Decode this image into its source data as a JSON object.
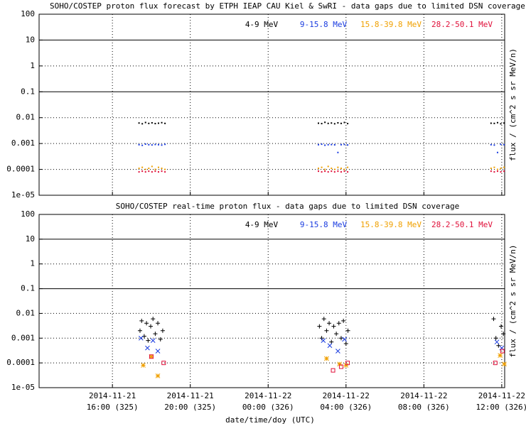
{
  "chart_data": [
    {
      "type": "scatter",
      "title": "SOHO/COSTEP proton flux forecast by ETPH IEAP CAU Kiel & SwRI  - data gaps due to limited DSN coverage",
      "ylabel": "flux / (cm^2 s sr MeV/n)",
      "ylog": true,
      "grid": true,
      "hlines": [
        10,
        0.1
      ],
      "legend": "top-right",
      "xlim": [
        "2014-11-21T12:14",
        "2014-11-22T12:09"
      ],
      "xticks": [
        "2014-11-21T16:00",
        "2014-11-21T20:00",
        "2014-11-22T00:00",
        "2014-11-22T04:00",
        "2014-11-22T08:00",
        "2014-11-22T12:00"
      ],
      "ylim": [
        1e-05,
        100
      ],
      "yticks": [
        100,
        10,
        1,
        0.1,
        0.01,
        0.001,
        0.0001,
        {
          "value": 1e-05,
          "label": "1e-05"
        }
      ],
      "x": [
        "2014-11-21T17:22",
        "2014-11-21T17:32",
        "2014-11-21T17:42",
        "2014-11-21T17:52",
        "2014-11-21T18:02",
        "2014-11-21T18:12",
        "2014-11-21T18:22",
        "2014-11-21T18:32",
        "2014-11-21T18:42",
        "2014-11-22T02:35",
        "2014-11-22T02:45",
        "2014-11-22T02:55",
        "2014-11-22T03:05",
        "2014-11-22T03:15",
        "2014-11-22T03:25",
        "2014-11-22T03:35",
        "2014-11-22T03:45",
        "2014-11-22T03:55",
        "2014-11-22T04:05",
        "2014-11-22T11:27",
        "2014-11-22T11:37",
        "2014-11-22T11:47",
        "2014-11-22T11:57",
        "2014-11-22T12:07"
      ],
      "series": [
        {
          "name": "4-9 MeV",
          "color": "#000000",
          "marker": "dot",
          "values": [
            0.0062,
            0.0058,
            0.0065,
            0.006,
            0.0063,
            0.0059,
            0.0061,
            0.0064,
            0.006,
            0.0061,
            0.0059,
            0.0066,
            0.006,
            0.0062,
            0.0058,
            0.0063,
            0.006,
            0.0065,
            0.0059,
            0.0061,
            0.006,
            0.0064,
            0.0058,
            0.0062
          ]
        },
        {
          "name": "9-15.8 MeV",
          "color": "#1a3ce0",
          "marker": "dot",
          "values": [
            0.0009,
            0.00085,
            0.00095,
            0.0009,
            0.00088,
            0.00092,
            0.0009,
            0.00087,
            0.00093,
            0.0009,
            0.00094,
            0.00086,
            0.0009,
            0.00091,
            0.00089,
            0.00045,
            0.0009,
            0.00092,
            0.00088,
            0.0009,
            0.00087,
            0.00045,
            0.00093,
            0.0009
          ]
        },
        {
          "name": "15.8-39.8 MeV",
          "color": "#f0a000",
          "marker": "dot",
          "values": [
            0.00011,
            0.00012,
            0.0001,
            0.00011,
            0.00013,
            0.0001,
            0.00012,
            0.00011,
            0.0001,
            0.00011,
            0.00012,
            0.0001,
            0.00013,
            0.00011,
            0.0001,
            0.00012,
            0.00011,
            0.0001,
            0.00012,
            0.00011,
            0.00012,
            0.0001,
            0.00011,
            0.00012
          ]
        },
        {
          "name": "28.2-50.1 MeV",
          "color": "#e0103a",
          "marker": "dot",
          "values": [
            8e-05,
            8.5e-05,
            8e-05,
            8.5e-05,
            8e-05,
            8.5e-05,
            8e-05,
            8.5e-05,
            8e-05,
            8.5e-05,
            8e-05,
            8.5e-05,
            8e-05,
            8.5e-05,
            8e-05,
            8.5e-05,
            8e-05,
            8.5e-05,
            8e-05,
            8.5e-05,
            8e-05,
            8.5e-05,
            8e-05,
            8.5e-05
          ]
        }
      ]
    },
    {
      "type": "scatter",
      "title": "SOHO/COSTEP real-time proton flux - data gaps due to limited DSN coverage",
      "ylabel": "flux / (cm^2 s sr MeV/n)",
      "xlabel": "date/time/doy (UTC)",
      "ylog": true,
      "grid": true,
      "hlines": [
        10,
        0.1
      ],
      "legend": "top-right",
      "xlim": [
        "2014-11-21T12:14",
        "2014-11-22T12:09"
      ],
      "xticks": [
        {
          "value": "2014-11-21T16:00",
          "label": [
            "2014-11-21",
            "16:00 (325)"
          ]
        },
        {
          "value": "2014-11-21T20:00",
          "label": [
            "2014-11-21",
            "20:00 (325)"
          ]
        },
        {
          "value": "2014-11-22T00:00",
          "label": [
            "2014-11-22",
            "00:00 (326)"
          ]
        },
        {
          "value": "2014-11-22T04:00",
          "label": [
            "2014-11-22",
            "04:00 (326)"
          ]
        },
        {
          "value": "2014-11-22T08:00",
          "label": [
            "2014-11-22",
            "08:00 (326)"
          ]
        },
        {
          "value": "2014-11-22T12:00",
          "label": [
            "2014-11-22",
            "12:00 (326)"
          ]
        }
      ],
      "ylim": [
        1e-05,
        100
      ],
      "yticks": [
        100,
        10,
        1,
        0.1,
        0.01,
        0.001,
        0.0001,
        {
          "value": 1e-05,
          "label": "1e-05"
        }
      ],
      "series": [
        {
          "name": "4-9 MeV",
          "color": "#000000",
          "marker": "plus",
          "x": [
            "2014-11-21T17:25",
            "2014-11-21T17:30",
            "2014-11-21T17:38",
            "2014-11-21T17:45",
            "2014-11-21T17:50",
            "2014-11-21T17:58",
            "2014-11-21T18:05",
            "2014-11-21T18:12",
            "2014-11-21T18:20",
            "2014-11-21T18:28",
            "2014-11-21T18:35",
            "2014-11-22T02:38",
            "2014-11-22T02:45",
            "2014-11-22T02:52",
            "2014-11-22T03:00",
            "2014-11-22T03:08",
            "2014-11-22T03:15",
            "2014-11-22T03:22",
            "2014-11-22T03:30",
            "2014-11-22T03:38",
            "2014-11-22T03:45",
            "2014-11-22T03:52",
            "2014-11-22T04:00",
            "2014-11-22T04:06",
            "2014-11-22T11:35",
            "2014-11-22T11:42",
            "2014-11-22T11:50",
            "2014-11-22T11:58",
            "2014-11-22T12:05"
          ],
          "values": [
            0.002,
            0.005,
            0.0012,
            0.004,
            0.0008,
            0.003,
            0.006,
            0.0015,
            0.004,
            0.0009,
            0.002,
            0.003,
            0.001,
            0.006,
            0.002,
            0.004,
            0.0007,
            0.003,
            0.0015,
            0.004,
            0.001,
            0.005,
            0.0006,
            0.002,
            0.006,
            0.001,
            0.0005,
            0.003,
            0.0015
          ]
        },
        {
          "name": "9-15.8 MeV",
          "color": "#1a3ce0",
          "marker": "x",
          "x": [
            "2014-11-21T17:28",
            "2014-11-21T17:48",
            "2014-11-21T18:05",
            "2014-11-21T18:20",
            "2014-11-22T02:50",
            "2014-11-22T03:10",
            "2014-11-22T03:35",
            "2014-11-22T03:55",
            "2014-11-22T11:45",
            "2014-11-22T12:00"
          ],
          "values": [
            0.001,
            0.0004,
            0.0008,
            0.0003,
            0.0008,
            0.0005,
            0.0003,
            0.0009,
            0.0007,
            0.0004
          ]
        },
        {
          "name": "15.8-39.8 MeV",
          "color": "#f0a000",
          "marker": "star",
          "x": [
            "2014-11-21T17:35",
            "2014-11-21T18:00",
            "2014-11-21T18:20",
            "2014-11-22T03:00",
            "2014-11-22T03:40",
            "2014-11-22T04:00",
            "2014-11-22T11:55",
            "2014-11-22T12:08"
          ],
          "values": [
            8e-05,
            0.00018,
            3e-05,
            0.00015,
            9e-05,
            8e-05,
            0.0002,
            9e-05
          ]
        },
        {
          "name": "28.2-50.1 MeV",
          "color": "#e0103a",
          "marker": "square",
          "x": [
            "2014-11-21T18:00",
            "2014-11-21T18:38",
            "2014-11-22T03:20",
            "2014-11-22T03:45",
            "2014-11-22T04:05",
            "2014-11-22T11:40",
            "2014-11-22T12:02"
          ],
          "values": [
            0.00018,
            0.0001,
            5e-05,
            7e-05,
            0.0001,
            0.0001,
            0.0003
          ]
        }
      ]
    }
  ]
}
